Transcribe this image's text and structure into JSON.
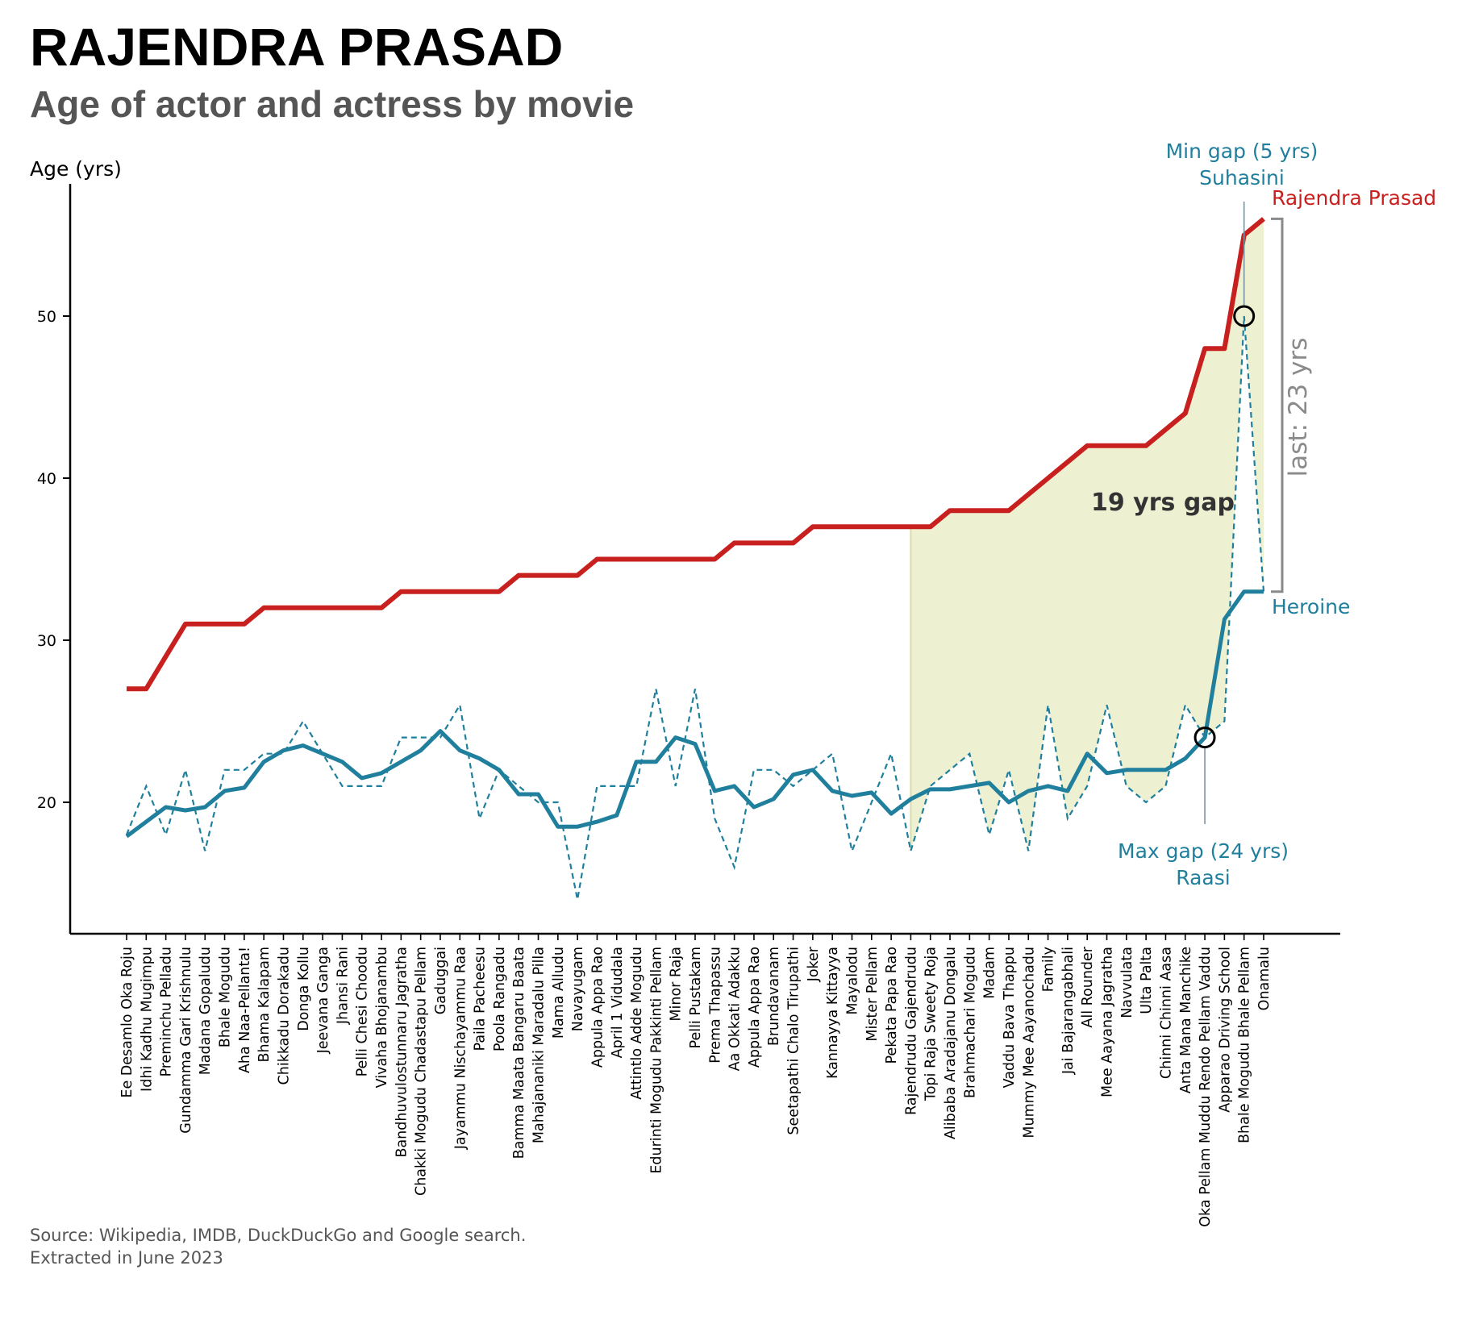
{
  "title": "RAJENDRA PRASAD",
  "subtitle": "Age of actor and actress by movie",
  "source_line1": "Source: Wikipedia, IMDB, DuckDuckGo and Google search.",
  "source_line2": "Extracted in June 2023",
  "colors": {
    "actor": "#c8201e",
    "heroine": "#1f7f9c",
    "gap_fill": "#eef0d2",
    "annotation_gray": "#8a8a8a",
    "callout_line": "#7a93a3"
  },
  "chart_data": {
    "type": "line",
    "ylabel": "Age (yrs)",
    "ylim": [
      12,
      58
    ],
    "yticks": [
      20,
      30,
      40,
      50
    ],
    "categories": [
      "Ee Desamlo Oka Roju",
      "Idhi Kadhu Mugimpu",
      "Preminchu Pelladu",
      "Gundamma Gari Krishnulu",
      "Madana Gopaludu",
      "Bhale Mogudu",
      "Aha Naa-Pellanta!",
      "Bhama Kalapam",
      "Chikkadu Dorakadu",
      "Donga Kollu",
      "Jeevana Ganga",
      "Jhansi Rani",
      "Pelli Chesi Choodu",
      "Vivaha Bhojanambu",
      "Bandhuvulostunnaru Jagratha",
      "Chakki Mogudu Chadastapu Pellam",
      "Gaduggai",
      "Jayammu Nischayammu Raa",
      "Paila Pacheesu",
      "Poola Rangadu",
      "Bamma Maata Bangaru Baata",
      "Mahajananiki Maradalu Pilla",
      "Mama Alludu",
      "Navayugam",
      "Appula Appa Rao",
      "April 1 Vidudala",
      "Attintlo Adde Mogudu",
      "Edurinti Mogudu Pakkinti Pellam",
      "Minor Raja",
      "Pelli Pustakam",
      "Prema Thapassu",
      "Aa Okkati Adakku",
      "Appula Appa Rao",
      "Brundavanam",
      "Seetapathi Chalo Tirupathi",
      "Joker",
      "Kannayya Kittayya",
      "Mayalodu",
      "Mister Pellam",
      "Pekata Papa Rao",
      "Rajendrudu Gajendrudu",
      "Topi Raja Sweety Roja",
      "Alibaba Aradajanu Dongalu",
      "Brahmachari Mogudu",
      "Madam",
      "Vaddu Bava Thappu",
      "Mummy Mee Aayanochadu",
      "Family",
      "Jai Bajarangabhali",
      "All Rounder",
      "Mee Aayana Jagratha",
      "Navvulata",
      "Ulta Palta",
      "Chinni Chinni Aasa",
      "Anta Mana Manchike",
      "Oka Pellam Muddu Rendo Pellam Vaddu",
      "Apparao Driving School",
      "Bhale Mogudu Bhale Pellam",
      "Onamalu"
    ],
    "series": [
      {
        "name": "Rajendra Prasad",
        "style": "solid-thick",
        "values": [
          27,
          27,
          29,
          31,
          31,
          31,
          31,
          32,
          32,
          32,
          32,
          32,
          32,
          32,
          33,
          33,
          33,
          33,
          33,
          33,
          34,
          34,
          34,
          34,
          35,
          35,
          35,
          35,
          35,
          35,
          35,
          36,
          36,
          36,
          36,
          37,
          37,
          37,
          37,
          37,
          37,
          37,
          38,
          38,
          38,
          38,
          39,
          40,
          41,
          42,
          42,
          42,
          42,
          43,
          44,
          48,
          48,
          55,
          56
        ]
      },
      {
        "name": "",
        "style": "dashed",
        "values": [
          18,
          21,
          18,
          22,
          17,
          22,
          22,
          23,
          23,
          25,
          23,
          21,
          21,
          21,
          24,
          24,
          24,
          26,
          19,
          22,
          21,
          20,
          20,
          14,
          21,
          21,
          21,
          27,
          21,
          27,
          19,
          16,
          22,
          22,
          21,
          22,
          23,
          17,
          20,
          23,
          17,
          21,
          22,
          23,
          18,
          22,
          17,
          26,
          19,
          21,
          26,
          21,
          20,
          21,
          26,
          24,
          25,
          50,
          33
        ]
      },
      {
        "name": "Heroine",
        "style": "solid-rolling",
        "values": [
          17.9,
          18.8,
          19.7,
          19.5,
          19.7,
          20.7,
          20.9,
          22.5,
          23.2,
          23.5,
          23.0,
          22.5,
          21.5,
          21.8,
          22.5,
          23.2,
          24.4,
          23.2,
          22.7,
          22.0,
          20.5,
          20.5,
          18.5,
          18.5,
          18.8,
          19.2,
          22.5,
          22.5,
          24.0,
          23.6,
          20.7,
          21.0,
          19.7,
          20.2,
          21.7,
          22.0,
          20.7,
          20.4,
          20.6,
          19.3,
          20.2,
          20.8,
          20.8,
          21.0,
          21.2,
          20.0,
          20.7,
          21.0,
          20.7,
          23.0,
          21.8,
          22.0,
          22.0,
          22.0,
          22.7,
          24.0,
          31.3,
          33.0,
          33.0
        ]
      }
    ],
    "gap_region_start": "Rajendrudu Gajendrudu",
    "annotations": {
      "gap_label": "19 yrs gap",
      "last_label": "last: 23 yrs",
      "min_gap_line1": "Min gap (5 yrs)",
      "min_gap_line2": "Suhasini",
      "min_gap_movie": "Bhale Mogudu Bhale Pellam",
      "min_gap_age": 50,
      "max_gap_line1": "Max gap (24 yrs)",
      "max_gap_line2": "Raasi",
      "max_gap_movie": "Oka Pellam Muddu Rendo Pellam Vaddu",
      "max_gap_age": 24
    }
  }
}
